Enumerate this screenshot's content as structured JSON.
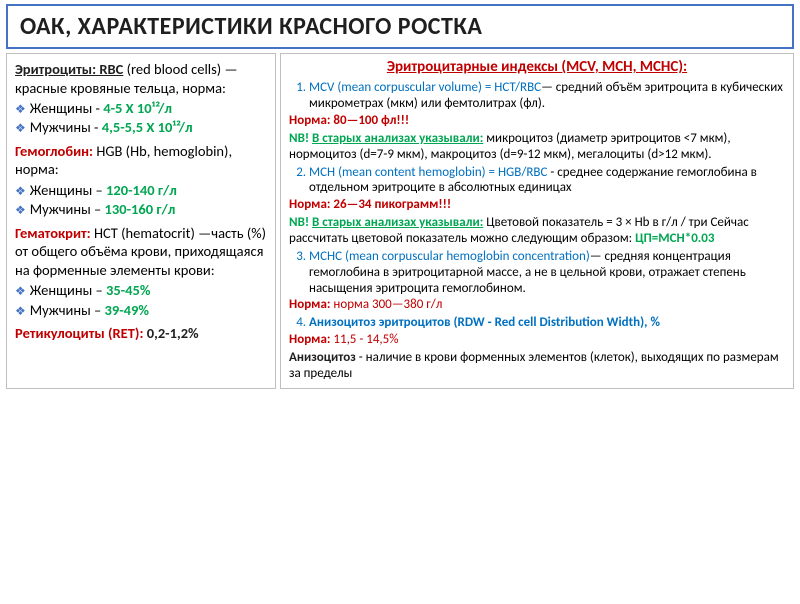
{
  "title": "ОАК, ХАРАКТЕРИСТИКИ КРАСНОГО РОСТКА",
  "left": {
    "rbc_head": "Эритроциты: RBC",
    "rbc_tail": " (red blood cells) — красные кровяные тельца, норма:",
    "rbc_w_lbl": "Женщины - ",
    "rbc_w_val": "4-5 Х 10¹²/л",
    "rbc_m_lbl": "Мужчины - ",
    "rbc_m_val": "4,5-5,5 Х 10¹²/л",
    "hgb_head": "Гемоглобин: ",
    "hgb_tail": " HGB (Hb, hemoglobin), норма:",
    "hgb_w_lbl": "Женщины – ",
    "hgb_w_val": "120-140 г/л",
    "hgb_m_lbl": "Мужчины – ",
    "hgb_m_val": "130-160 г/л",
    "hct_head": "Гематокрит: ",
    "hct_tail": " HCT (hematocrit) —часть (%) от общего объёма крови, приходящаяся на форменные элементы крови:",
    "hct_w_lbl": "Женщины – ",
    "hct_w_val": "35-45%",
    "hct_m_lbl": "Мужчины – ",
    "hct_m_val": "39-49%",
    "ret_head": "Ретикулоциты (RET): ",
    "ret_val": "0,2-1,2%"
  },
  "right": {
    "idx_title": "Эритроцитарные индексы (MCV, MCH, MCHC):",
    "mcv_head": "MCV (mean corpuscular volume) = HCT/RBC",
    "mcv_tail": "— средний объём эритроцита в кубических микрометрах (мкм) или фемтолитрах (фл).",
    "mcv_norm_lbl": "Норма: ",
    "mcv_norm_val": "80—100 фл!!!",
    "nb1_head": "NB! ",
    "nb1_under": "В старых анализах указывали:",
    "nb1_tail": " микроцитоз (диаметр эритроцитов <7 мкм), нормоцитоз (d=7-9 мкм), макроцитоз (d=9-12 мкм), мегалоциты (d>12 мкм).",
    "mch_head": "MCH (mean content hemoglobin) = HGB/RBC",
    "mch_tail": " - среднее содержание гемоглобина в отдельном эритроците в абсолютных единицах",
    "mch_norm_lbl": "Норма: ",
    "mch_norm_val": "26—34 пикограмм!!!",
    "nb2_head": "NB! ",
    "nb2_under": "В старых анализах указывали:",
    "nb2_tail1": " Цветовой показатель = 3 × Hb в г/л / три Сейчас рассчитать цветовой показатель можно следующим образом: ",
    "nb2_formula": "ЦП=MCH*0.03",
    "mchc_head": "MCHC (mean corpuscular hemoglobin concentration)",
    "mchc_tail": "— средняя концентрация гемоглобина в эритроцитарной массе, а не в цельной крови, отражает степень насыщения эритроцита гемоглобином.",
    "mchc_norm_lbl": "Норма: ",
    "mchc_norm_val": "норма 300—380 г/л",
    "rdw_head": "Анизоцитоз эритроцитов (RDW - Red cell Distribution Width), %",
    "rdw_norm_lbl": "Норма: ",
    "rdw_norm_val": "11,5 - 14,5%",
    "aniso_head": "Анизоцитоз",
    "aniso_tail": " - наличие в крови форменных элементов (клеток), выходящих по размерам за пределы"
  }
}
